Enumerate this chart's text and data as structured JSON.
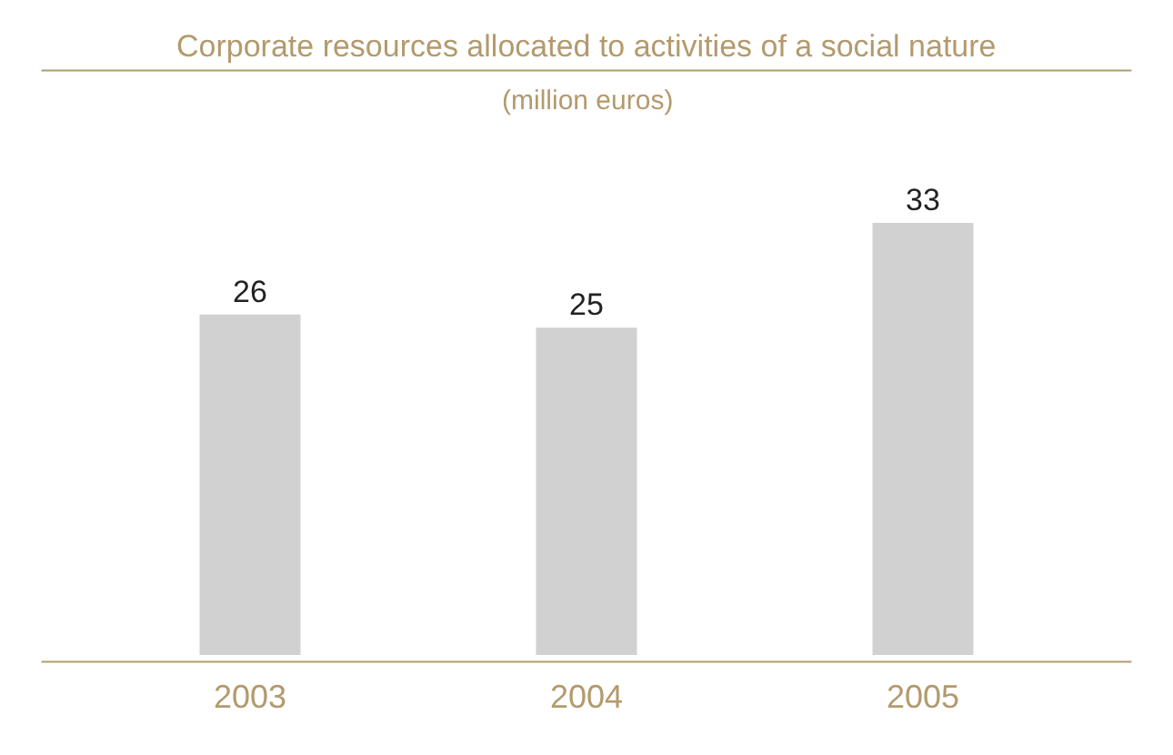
{
  "chart_data": {
    "type": "bar",
    "title": "Corporate resources allocated to activities of a social nature",
    "subtitle": "(million euros)",
    "categories": [
      "2003",
      "2004",
      "2005"
    ],
    "values": [
      26,
      25,
      33
    ],
    "color": "#d1d1d1",
    "data_labels": true,
    "legend": false
  }
}
